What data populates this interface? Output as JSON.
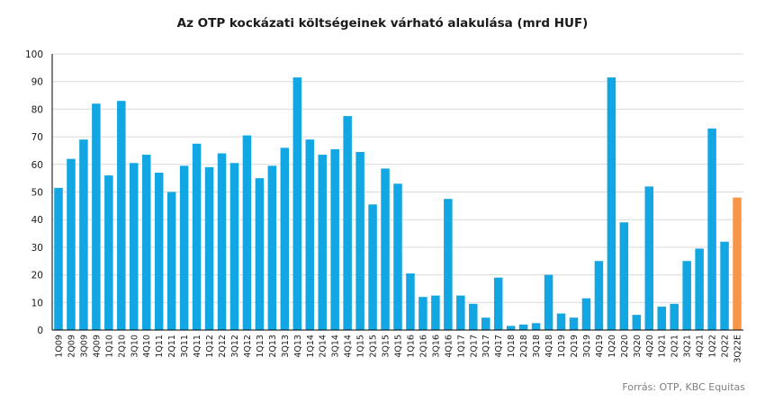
{
  "chart_data": {
    "type": "bar",
    "title": "Az OTP kockázati költségeinek várható alakulása (mrd HUF)",
    "xlabel": "",
    "ylabel": "",
    "ylim": [
      0,
      100
    ],
    "yticks": [
      0,
      10,
      20,
      30,
      40,
      50,
      60,
      70,
      80,
      90,
      100
    ],
    "grid": true,
    "colors": {
      "actual": "#12A6E2",
      "estimate": "#F79646",
      "grid": "#D9D9D9"
    },
    "highlight_category": "3Q22E",
    "categories": [
      "1Q09",
      "2Q09",
      "3Q09",
      "4Q09",
      "1Q10",
      "2Q10",
      "3Q10",
      "4Q10",
      "1Q11",
      "2Q11",
      "3Q11",
      "4Q11",
      "1Q12",
      "2Q12",
      "3Q12",
      "4Q12",
      "1Q13",
      "2Q13",
      "3Q13",
      "4Q13",
      "1Q14",
      "2Q14",
      "3Q14",
      "4Q14",
      "1Q15",
      "2Q15",
      "3Q15",
      "4Q15",
      "1Q16",
      "2Q16",
      "3Q16",
      "4Q16",
      "1Q17",
      "2Q17",
      "3Q17",
      "4Q17",
      "1Q18",
      "2Q18",
      "3Q18",
      "4Q18",
      "1Q19",
      "2Q19",
      "3Q19",
      "4Q19",
      "1Q20",
      "2Q20",
      "3Q20",
      "4Q20",
      "1Q21",
      "2Q21",
      "3Q21",
      "4Q21",
      "1Q22",
      "2Q22",
      "3Q22E"
    ],
    "values": [
      51.5,
      62,
      69,
      82,
      56,
      83,
      60.5,
      63.5,
      57,
      50,
      59.5,
      67.5,
      59,
      64,
      60.5,
      70.5,
      55,
      59.5,
      66,
      91.5,
      69,
      63.5,
      65.5,
      77.5,
      64.5,
      45.5,
      58.5,
      53,
      20.5,
      12,
      12.5,
      47.5,
      12.5,
      9.5,
      4.5,
      19,
      1.5,
      2,
      2.5,
      20,
      6,
      4.5,
      11.5,
      25,
      91.5,
      39,
      5.5,
      52,
      8.5,
      9.5,
      25,
      29.5,
      73,
      32,
      48
    ]
  },
  "source_note": "Forrás: OTP, KBC Equitas"
}
